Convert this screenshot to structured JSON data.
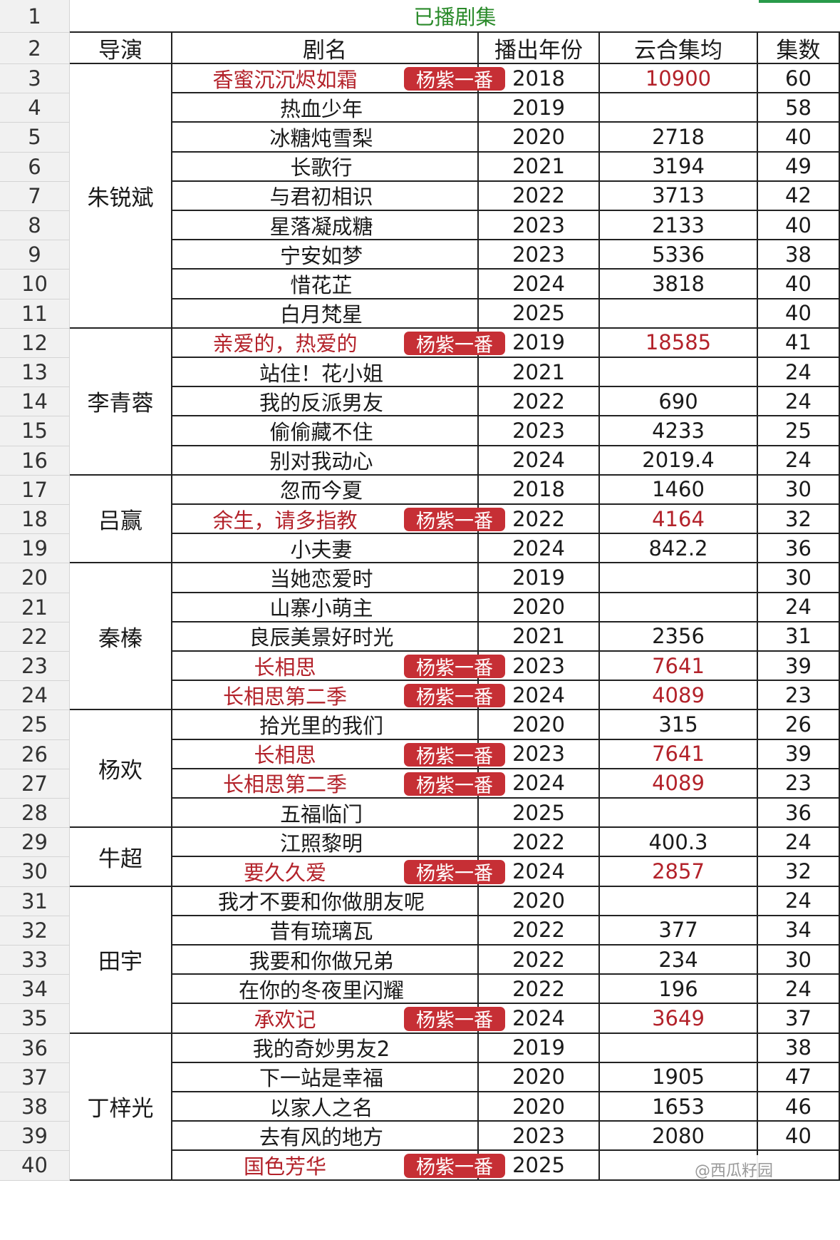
{
  "sheet_title": "已播剧集",
  "headers": {
    "director": "导演",
    "drama": "剧名",
    "year": "播出年份",
    "views": "云合集均",
    "episodes": "集数"
  },
  "badge_text": "杨紫一番",
  "watermark": "@西瓜籽园",
  "colors": {
    "highlight_red": "#b3222a",
    "badge_bg": "#c62f35",
    "title_green": "#2a8a2a"
  },
  "rows": [
    {
      "name": "香蜜沉沉烬如霜",
      "year": "2018",
      "views": "10900",
      "episodes": "60",
      "badge": true
    },
    {
      "name": "热血少年",
      "year": "2019",
      "views": "",
      "episodes": "58",
      "badge": false
    },
    {
      "name": "冰糖炖雪梨",
      "year": "2020",
      "views": "2718",
      "episodes": "40",
      "badge": false
    },
    {
      "name": "长歌行",
      "year": "2021",
      "views": "3194",
      "episodes": "49",
      "badge": false
    },
    {
      "name": "与君初相识",
      "year": "2022",
      "views": "3713",
      "episodes": "42",
      "badge": false
    },
    {
      "name": "星落凝成糖",
      "year": "2023",
      "views": "2133",
      "episodes": "40",
      "badge": false
    },
    {
      "name": "宁安如梦",
      "year": "2023",
      "views": "5336",
      "episodes": "38",
      "badge": false
    },
    {
      "name": "惜花芷",
      "year": "2024",
      "views": "3818",
      "episodes": "40",
      "badge": false
    },
    {
      "name": "白月梵星",
      "year": "2025",
      "views": "",
      "episodes": "40",
      "badge": false
    },
    {
      "name": "亲爱的，热爱的",
      "year": "2019",
      "views": "18585",
      "episodes": "41",
      "badge": true
    },
    {
      "name": "站住！花小姐",
      "year": "2021",
      "views": "",
      "episodes": "24",
      "badge": false
    },
    {
      "name": "我的反派男友",
      "year": "2022",
      "views": "690",
      "episodes": "24",
      "badge": false
    },
    {
      "name": "偷偷藏不住",
      "year": "2023",
      "views": "4233",
      "episodes": "25",
      "badge": false
    },
    {
      "name": "别对我动心",
      "year": "2024",
      "views": "2019.4",
      "episodes": "24",
      "badge": false
    },
    {
      "name": "忽而今夏",
      "year": "2018",
      "views": "1460",
      "episodes": "30",
      "badge": false
    },
    {
      "name": "余生，请多指教",
      "year": "2022",
      "views": "4164",
      "episodes": "32",
      "badge": true
    },
    {
      "name": "小夫妻",
      "year": "2024",
      "views": "842.2",
      "episodes": "36",
      "badge": false
    },
    {
      "name": "当她恋爱时",
      "year": "2019",
      "views": "",
      "episodes": "30",
      "badge": false
    },
    {
      "name": "山寨小萌主",
      "year": "2020",
      "views": "",
      "episodes": "24",
      "badge": false
    },
    {
      "name": "良辰美景好时光",
      "year": "2021",
      "views": "2356",
      "episodes": "31",
      "badge": false
    },
    {
      "name": "长相思",
      "year": "2023",
      "views": "7641",
      "episodes": "39",
      "badge": true
    },
    {
      "name": "长相思第二季",
      "year": "2024",
      "views": "4089",
      "episodes": "23",
      "badge": true
    },
    {
      "name": "拾光里的我们",
      "year": "2020",
      "views": "315",
      "episodes": "26",
      "badge": false
    },
    {
      "name": "长相思",
      "year": "2023",
      "views": "7641",
      "episodes": "39",
      "badge": true
    },
    {
      "name": "长相思第二季",
      "year": "2024",
      "views": "4089",
      "episodes": "23",
      "badge": true
    },
    {
      "name": "五福临门",
      "year": "2025",
      "views": "",
      "episodes": "36",
      "badge": false
    },
    {
      "name": "江照黎明",
      "year": "2022",
      "views": "400.3",
      "episodes": "24",
      "badge": false
    },
    {
      "name": "要久久爱",
      "year": "2024",
      "views": "2857",
      "episodes": "32",
      "badge": true
    },
    {
      "name": "我才不要和你做朋友呢",
      "year": "2020",
      "views": "",
      "episodes": "24",
      "badge": false
    },
    {
      "name": "昔有琉璃瓦",
      "year": "2022",
      "views": "377",
      "episodes": "34",
      "badge": false
    },
    {
      "name": "我要和你做兄弟",
      "year": "2022",
      "views": "234",
      "episodes": "30",
      "badge": false
    },
    {
      "name": "在你的冬夜里闪耀",
      "year": "2022",
      "views": "196",
      "episodes": "24",
      "badge": false
    },
    {
      "name": "承欢记",
      "year": "2024",
      "views": "3649",
      "episodes": "37",
      "badge": true
    },
    {
      "name": "我的奇妙男友2",
      "year": "2019",
      "views": "",
      "episodes": "38",
      "badge": false
    },
    {
      "name": "下一站是幸福",
      "year": "2020",
      "views": "1905",
      "episodes": "47",
      "badge": false
    },
    {
      "name": "以家人之名",
      "year": "2020",
      "views": "1653",
      "episodes": "46",
      "badge": false
    },
    {
      "name": "去有风的地方",
      "year": "2023",
      "views": "2080",
      "episodes": "40",
      "badge": false
    },
    {
      "name": "国色芳华",
      "year": "2025",
      "views": "",
      "episodes": "",
      "badge": true
    }
  ],
  "directors": [
    {
      "name": "朱锐斌",
      "count": 9
    },
    {
      "name": "李青蓉",
      "count": 5
    },
    {
      "name": "吕赢",
      "count": 3
    },
    {
      "name": "秦榛",
      "count": 5
    },
    {
      "name": "杨欢",
      "count": 4
    },
    {
      "name": "牛超",
      "count": 2
    },
    {
      "name": "田宇",
      "count": 5
    },
    {
      "name": "丁梓光",
      "count": 5
    }
  ]
}
